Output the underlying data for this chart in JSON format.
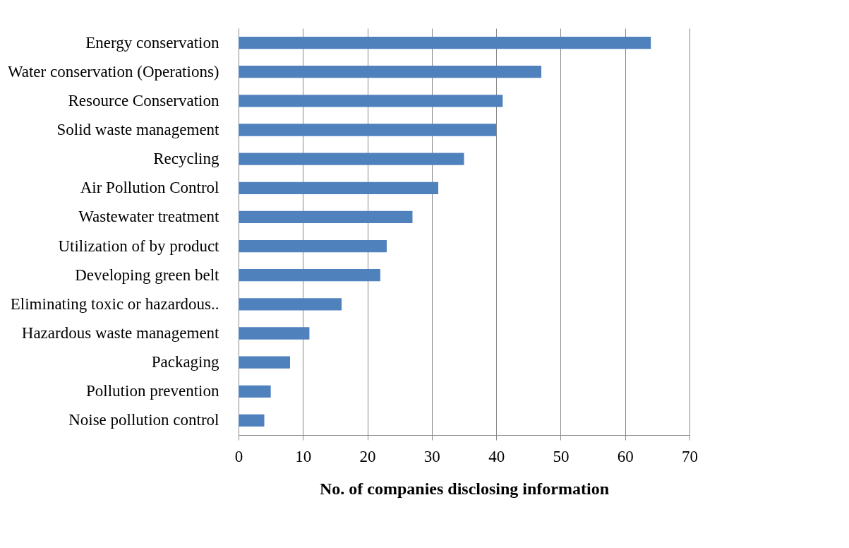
{
  "chart_data": {
    "type": "bar",
    "orientation": "horizontal",
    "xlabel": "No. of companies disclosing information",
    "categories": [
      "Energy conservation",
      "Water conservation (Operations)",
      "Resource Conservation",
      "Solid waste management",
      "Recycling",
      "Air Pollution Control",
      "Wastewater treatment",
      "Utilization of by product",
      "Developing green belt",
      "Eliminating toxic or hazardous..",
      "Hazardous waste management",
      "Packaging",
      "Pollution prevention",
      "Noise pollution control"
    ],
    "values": [
      64,
      47,
      41,
      40,
      35,
      31,
      27,
      23,
      22,
      16,
      11,
      8,
      5,
      4
    ],
    "color": "#4f81bd",
    "xlim": [
      0,
      70
    ],
    "xticks": [
      0,
      10,
      20,
      30,
      40,
      50,
      60,
      70
    ],
    "grid": "x"
  }
}
